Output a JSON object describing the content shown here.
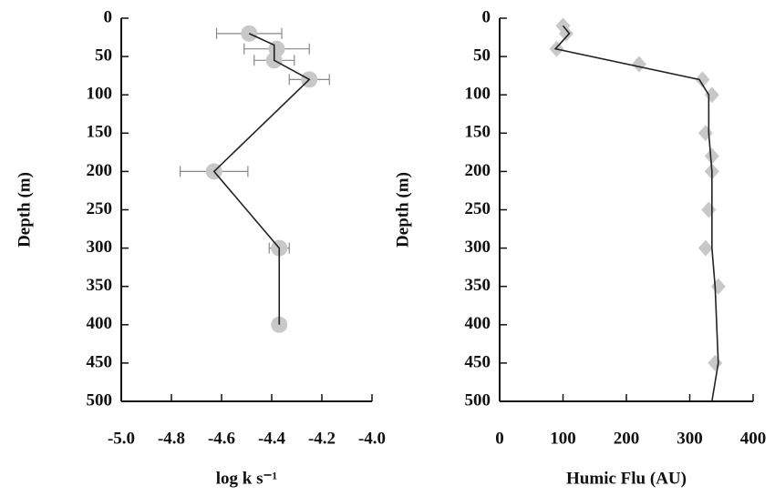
{
  "chart_data": [
    {
      "type": "scatter",
      "xlabel": "log k s⁻¹",
      "ylabel": "Depth (m)",
      "xlim": [
        -5.0,
        -4.0
      ],
      "xticks": [
        {
          "value": -5.0,
          "label": "-5.0"
        },
        -4.8,
        -4.6,
        -4.4,
        -4.2,
        {
          "value": -4.0,
          "label": "-4.0"
        }
      ],
      "ylim": [
        0,
        500
      ],
      "y_inverted": true,
      "yticks": [
        0,
        50,
        100,
        150,
        200,
        250,
        300,
        350,
        400,
        450,
        500
      ],
      "series": [
        {
          "style": "markers",
          "marker": "circle",
          "color": "#c8c8c8",
          "x": [
            -4.49,
            -4.38,
            -4.39,
            -4.25,
            -4.63,
            -4.37,
            -4.37
          ],
          "values": [
            20,
            40,
            55,
            80,
            200,
            300,
            400
          ],
          "xerr": [
            0.13,
            0.13,
            0.08,
            0.08,
            0.135,
            0.04,
            null
          ]
        },
        {
          "style": "line",
          "color": "#222222",
          "x": [
            -4.49,
            -4.39,
            -4.39,
            -4.25,
            -4.63,
            -4.37,
            -4.37
          ],
          "values": [
            20,
            35,
            55,
            80,
            200,
            300,
            400
          ]
        }
      ]
    },
    {
      "type": "scatter",
      "xlabel": "Humic Flu (AU)",
      "ylabel": "Depth (m)",
      "xlim": [
        0,
        400
      ],
      "xticks": [
        0,
        100,
        200,
        300,
        400
      ],
      "ylim": [
        0,
        500
      ],
      "y_inverted": true,
      "yticks": [
        0,
        50,
        100,
        150,
        200,
        250,
        300,
        350,
        400,
        450,
        500
      ],
      "series": [
        {
          "style": "markers",
          "marker": "diamond",
          "color": "#c8c8c8",
          "x": [
            100,
            105,
            90,
            220,
            320,
            335,
            325,
            335,
            335,
            330,
            325,
            345,
            340
          ],
          "values": [
            10,
            20,
            40,
            60,
            80,
            100,
            150,
            180,
            200,
            250,
            300,
            350,
            450
          ]
        },
        {
          "style": "line",
          "color": "#222222",
          "x": [
            100,
            110,
            88,
            315,
            330,
            330,
            335,
            335,
            340,
            345,
            335
          ],
          "values": [
            10,
            20,
            40,
            80,
            100,
            150,
            200,
            300,
            350,
            450,
            500
          ]
        }
      ]
    }
  ]
}
